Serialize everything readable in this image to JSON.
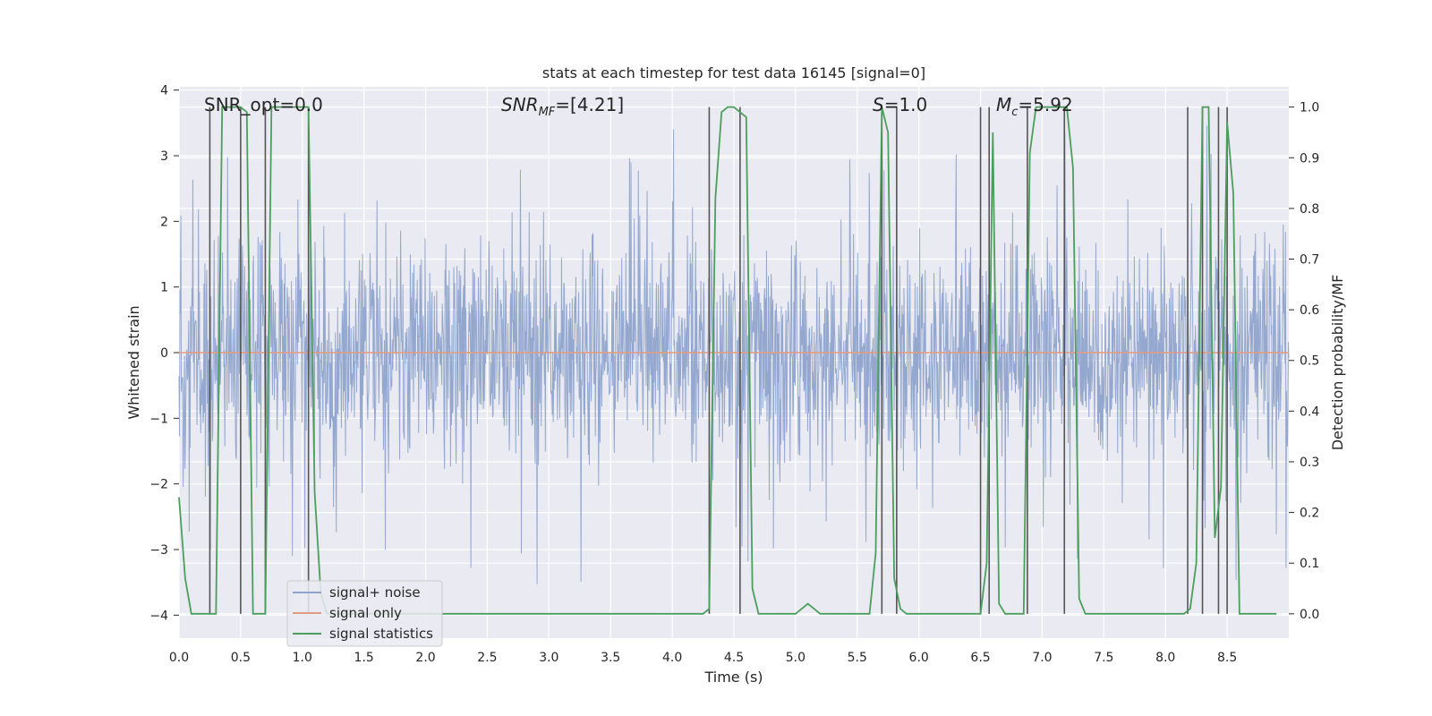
{
  "chart_data": {
    "type": "line",
    "title": "stats at each timestep for test data 16145 [signal=0]",
    "xlabel": "Time (s)",
    "ylabel": "Whitened strain",
    "ylabel_right": "Detection probability/MF",
    "xlim": [
      0.0,
      9.0
    ],
    "ylim": [
      -4.35,
      4.05
    ],
    "ylim_right": [
      -0.048,
      1.04
    ],
    "xticks": [
      "0.0",
      "0.5",
      "1.0",
      "1.5",
      "2.0",
      "2.5",
      "3.0",
      "3.5",
      "4.0",
      "4.5",
      "5.0",
      "5.5",
      "6.0",
      "6.5",
      "7.0",
      "7.5",
      "8.0",
      "8.5"
    ],
    "xtick_values": [
      0.0,
      0.5,
      1.0,
      1.5,
      2.0,
      2.5,
      3.0,
      3.5,
      4.0,
      4.5,
      5.0,
      5.5,
      6.0,
      6.5,
      7.0,
      7.5,
      8.0,
      8.5
    ],
    "yticks": [
      "4",
      "3",
      "2",
      "1",
      "0",
      "−1",
      "−2",
      "−3",
      "−4"
    ],
    "ytick_values": [
      4,
      3,
      2,
      1,
      0,
      -1,
      -2,
      -3,
      -4
    ],
    "yticks_right": [
      "1.0",
      "0.9",
      "0.8",
      "0.7",
      "0.6",
      "0.5",
      "0.4",
      "0.3",
      "0.2",
      "0.1",
      "0.0"
    ],
    "ytick_right_values": [
      1.0,
      0.9,
      0.8,
      0.7,
      0.6,
      0.5,
      0.4,
      0.3,
      0.2,
      0.1,
      0.0
    ],
    "annotations": {
      "snr_opt": "SNR_opt=0.0",
      "snr_mf": "SNR",
      "snr_mf_sub": "MF",
      "snr_mf_value": "=[4.21]",
      "s_label": "S",
      "s_value": "=1.0",
      "mc_label": "M",
      "mc_sub": "c",
      "mc_value": "=5.92"
    },
    "series": [
      {
        "name": "signal+ noise",
        "color": "#8fa4cc",
        "envelope": {
          "typical_amplitude": 1.5,
          "peak_range": [
            -3.6,
            3.5
          ]
        }
      },
      {
        "name": "signal only",
        "color": "#e69a7f",
        "value": 0.0
      },
      {
        "name": "signal statistics",
        "color": "#4c9e5c",
        "x": [
          0.0,
          0.05,
          0.1,
          0.15,
          0.2,
          0.25,
          0.3,
          0.35,
          0.4,
          0.45,
          0.5,
          0.55,
          0.6,
          0.65,
          0.7,
          0.75,
          0.8,
          0.85,
          0.9,
          0.95,
          1.0,
          1.05,
          1.1,
          1.15,
          1.2,
          1.3,
          1.5,
          2.0,
          2.5,
          3.0,
          3.5,
          4.0,
          4.25,
          4.3,
          4.35,
          4.4,
          4.45,
          4.5,
          4.55,
          4.6,
          4.65,
          4.7,
          4.8,
          4.9,
          5.0,
          5.05,
          5.1,
          5.15,
          5.2,
          5.3,
          5.5,
          5.6,
          5.65,
          5.7,
          5.75,
          5.8,
          5.85,
          5.9,
          5.95,
          6.0,
          6.1,
          6.3,
          6.45,
          6.5,
          6.55,
          6.6,
          6.65,
          6.7,
          6.8,
          6.85,
          6.9,
          6.95,
          7.0,
          7.1,
          7.15,
          7.2,
          7.25,
          7.3,
          7.35,
          7.45,
          7.6,
          8.0,
          8.15,
          8.2,
          8.25,
          8.3,
          8.35,
          8.4,
          8.45,
          8.5,
          8.55,
          8.6,
          8.65,
          8.7,
          8.9
        ],
        "y": [
          0.23,
          0.07,
          0.0,
          0.0,
          0.0,
          0.0,
          0.0,
          1.0,
          1.0,
          1.0,
          1.0,
          0.99,
          0.0,
          0.0,
          0.0,
          1.0,
          1.0,
          1.0,
          1.0,
          1.0,
          1.0,
          1.0,
          0.24,
          0.04,
          0.0,
          0.0,
          0.0,
          0.0,
          0.0,
          0.0,
          0.0,
          0.0,
          0.0,
          0.01,
          0.82,
          0.99,
          1.0,
          1.0,
          0.99,
          0.98,
          0.05,
          0.0,
          0.0,
          0.0,
          0.0,
          0.01,
          0.02,
          0.01,
          0.0,
          0.0,
          0.0,
          0.0,
          0.12,
          1.0,
          0.95,
          0.07,
          0.01,
          0.0,
          0.0,
          0.0,
          0.0,
          0.0,
          0.0,
          0.0,
          0.1,
          0.95,
          0.02,
          0.0,
          0.0,
          0.0,
          0.91,
          1.0,
          1.0,
          1.0,
          1.0,
          1.0,
          0.88,
          0.03,
          0.0,
          0.0,
          0.0,
          0.0,
          0.0,
          0.01,
          0.1,
          1.0,
          1.0,
          0.15,
          0.25,
          0.97,
          0.83,
          0.0,
          0.0,
          0.0,
          0.0
        ]
      },
      {
        "name": "markers",
        "color": "#555555",
        "x": [
          0.25,
          0.5,
          0.7,
          1.05,
          4.3,
          4.55,
          5.7,
          5.82,
          6.5,
          6.57,
          6.88,
          7.18,
          8.18,
          8.3,
          8.43,
          8.5
        ]
      }
    ],
    "legend": {
      "position": "lower-left",
      "entries": [
        "signal+ noise",
        "signal only",
        "signal statistics"
      ]
    },
    "colors": {
      "plot_bg": "#eaeaf2",
      "grid": "#ffffff",
      "noise": "#8fa4cc",
      "signal": "#e69a7f",
      "stats": "#4c9e5c",
      "marker": "#555555"
    }
  }
}
